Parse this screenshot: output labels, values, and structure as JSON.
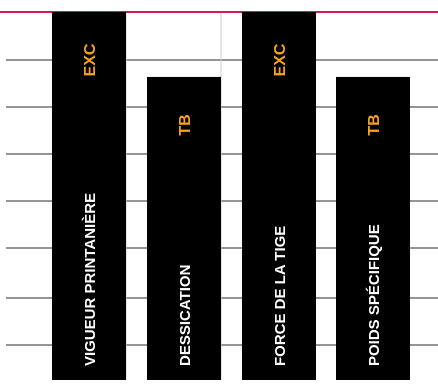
{
  "chart_data": {
    "type": "bar",
    "categories": [
      "VIGUEUR PRINTANIÈRE",
      "DESSICATION",
      "FORCE DE LA TIGE",
      "POIDS SPÉCIFIQUE"
    ],
    "values": [
      8.5,
      7,
      8.5,
      7
    ],
    "value_labels": [
      "EXC",
      "TB",
      "EXC",
      "TB"
    ],
    "title": "",
    "xlabel": "",
    "ylabel": "",
    "ylim": [
      0,
      8.5
    ],
    "grid": true,
    "colors": {
      "bar": "#000000",
      "value_label": "#f7a21b",
      "category_label": "#ffffff",
      "top_rule": "#d6175e",
      "grid": "#2b2b2b",
      "column_band": "#eeeeee"
    }
  }
}
